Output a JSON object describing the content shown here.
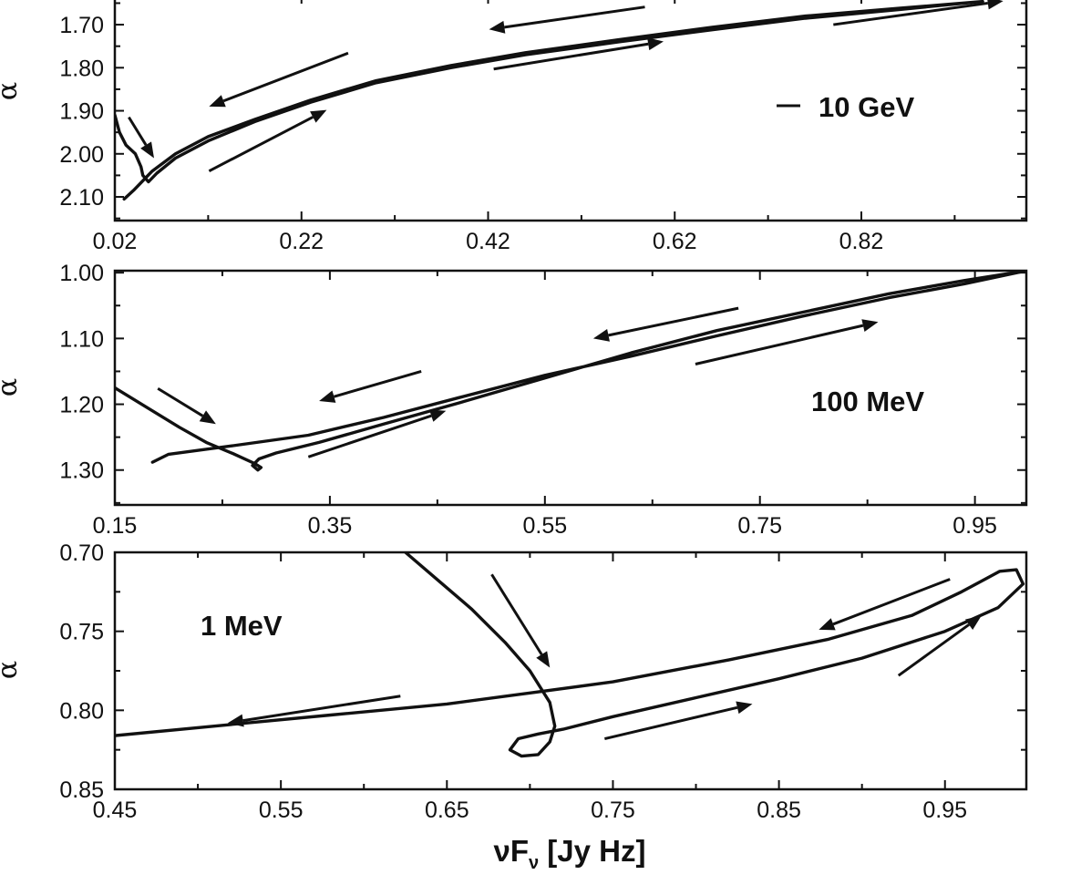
{
  "chart_data": [
    {
      "type": "line",
      "id": "panel-10gev",
      "label": "10 GeV",
      "ylabel": "α",
      "xlabel": "",
      "xlim": [
        0.02,
        0.9968
      ],
      "ylim": [
        1.63,
        2.155
      ],
      "y_inverted": true,
      "x_ticks": [
        0.02,
        0.22,
        0.42,
        0.62,
        0.82
      ],
      "x_tick_labels": [
        "0.02",
        "0.22",
        "0.42",
        "0.62",
        "0.82"
      ],
      "y_ticks": [
        1.7,
        1.8,
        1.9,
        2.0,
        2.1
      ],
      "y_tick_labels": [
        "1.70",
        "1.80",
        "1.90",
        "2.00",
        "2.10"
      ],
      "series": [
        {
          "points": [
            [
              0.02,
              1.91
            ],
            [
              0.025,
              1.95
            ],
            [
              0.032,
              1.98
            ],
            [
              0.042,
              2.0
            ],
            [
              0.048,
              2.03
            ],
            [
              0.05,
              2.05
            ],
            [
              0.056,
              2.065
            ],
            [
              0.065,
              2.045
            ],
            [
              0.085,
              2.01
            ],
            [
              0.12,
              1.97
            ],
            [
              0.17,
              1.925
            ],
            [
              0.23,
              1.88
            ],
            [
              0.3,
              1.835
            ],
            [
              0.38,
              1.8
            ],
            [
              0.46,
              1.77
            ],
            [
              0.56,
              1.74
            ],
            [
              0.66,
              1.712
            ],
            [
              0.76,
              1.685
            ],
            [
              0.86,
              1.665
            ],
            [
              0.95,
              1.646
            ],
            [
              0.86,
              1.662
            ],
            [
              0.76,
              1.68
            ],
            [
              0.66,
              1.706
            ],
            [
              0.56,
              1.735
            ],
            [
              0.46,
              1.765
            ],
            [
              0.38,
              1.795
            ],
            [
              0.3,
              1.83
            ],
            [
              0.23,
              1.875
            ],
            [
              0.17,
              1.92
            ],
            [
              0.12,
              1.96
            ],
            [
              0.085,
              2.0
            ],
            [
              0.06,
              2.04
            ],
            [
              0.04,
              2.085
            ],
            [
              0.03,
              2.105
            ]
          ]
        }
      ],
      "arrows": [
        [
          [
            0.588,
            1.659
          ],
          [
            0.421,
            1.711
          ]
        ],
        [
          [
            0.426,
            1.803
          ],
          [
            0.608,
            1.739
          ]
        ],
        [
          [
            0.27,
            1.766
          ],
          [
            0.121,
            1.89
          ]
        ],
        [
          [
            0.121,
            2.04
          ],
          [
            0.247,
            1.898
          ]
        ],
        [
          [
            0.035,
            1.915
          ],
          [
            0.062,
            2.01
          ]
        ],
        [
          [
            0.79,
            1.7
          ],
          [
            0.972,
            1.645
          ]
        ]
      ]
    },
    {
      "type": "line",
      "id": "panel-100mev",
      "label": "100 MeV",
      "ylabel": "α",
      "xlabel": "",
      "xlim": [
        0.15,
        0.9978
      ],
      "ylim": [
        0.997,
        1.353
      ],
      "y_inverted": true,
      "x_ticks": [
        0.15,
        0.35,
        0.55,
        0.75,
        0.95
      ],
      "x_tick_labels": [
        "0.15",
        "0.35",
        "0.55",
        "0.75",
        "0.95"
      ],
      "y_ticks": [
        1.0,
        1.1,
        1.2,
        1.3
      ],
      "y_tick_labels": [
        "1.00",
        "1.10",
        "1.20",
        "1.30"
      ],
      "series": [
        {
          "points": [
            [
              0.15,
              1.175
            ],
            [
              0.18,
              1.205
            ],
            [
              0.21,
              1.235
            ],
            [
              0.235,
              1.258
            ],
            [
              0.26,
              1.275
            ],
            [
              0.28,
              1.29
            ],
            [
              0.286,
              1.296
            ],
            [
              0.283,
              1.3
            ],
            [
              0.278,
              1.293
            ],
            [
              0.284,
              1.283
            ],
            [
              0.3,
              1.274
            ],
            [
              0.34,
              1.258
            ],
            [
              0.4,
              1.23
            ],
            [
              0.47,
              1.198
            ],
            [
              0.55,
              1.16
            ],
            [
              0.63,
              1.122
            ],
            [
              0.71,
              1.088
            ],
            [
              0.79,
              1.06
            ],
            [
              0.87,
              1.032
            ],
            [
              0.94,
              1.012
            ],
            [
              0.9978,
              0.997
            ],
            [
              0.94,
              1.017
            ],
            [
              0.87,
              1.038
            ],
            [
              0.79,
              1.066
            ],
            [
              0.71,
              1.096
            ],
            [
              0.63,
              1.127
            ],
            [
              0.55,
              1.156
            ],
            [
              0.47,
              1.19
            ],
            [
              0.4,
              1.22
            ],
            [
              0.33,
              1.247
            ],
            [
              0.26,
              1.263
            ],
            [
              0.2,
              1.276
            ],
            [
              0.185,
              1.288
            ]
          ]
        }
      ],
      "arrows": [
        [
          [
            0.73,
            1.054
          ],
          [
            0.595,
            1.1
          ]
        ],
        [
          [
            0.435,
            1.15
          ],
          [
            0.34,
            1.195
          ]
        ],
        [
          [
            0.19,
            1.176
          ],
          [
            0.244,
            1.23
          ]
        ],
        [
          [
            0.33,
            1.28
          ],
          [
            0.458,
            1.21
          ]
        ],
        [
          [
            0.69,
            1.139
          ],
          [
            0.86,
            1.075
          ]
        ]
      ]
    },
    {
      "type": "line",
      "id": "panel-1mev",
      "label": "1 MeV",
      "ylabel": "α",
      "xlabel": "νFν [Jy Hz]",
      "xlim": [
        0.45,
        0.999
      ],
      "ylim": [
        0.7,
        0.85
      ],
      "y_inverted": true,
      "x_ticks": [
        0.45,
        0.55,
        0.65,
        0.75,
        0.85,
        0.95
      ],
      "x_tick_labels": [
        "0.45",
        "0.55",
        "0.65",
        "0.75",
        "0.85",
        "0.95"
      ],
      "y_ticks": [
        0.7,
        0.75,
        0.8,
        0.85
      ],
      "y_tick_labels": [
        "0.70",
        "0.75",
        "0.80",
        "0.85"
      ],
      "series": [
        {
          "points": [
            [
              0.625,
              0.7
            ],
            [
              0.645,
              0.718
            ],
            [
              0.665,
              0.736
            ],
            [
              0.685,
              0.757
            ],
            [
              0.7,
              0.775
            ],
            [
              0.712,
              0.795
            ],
            [
              0.715,
              0.81
            ],
            [
              0.712,
              0.82
            ],
            [
              0.705,
              0.828
            ],
            [
              0.695,
              0.829
            ],
            [
              0.688,
              0.825
            ],
            [
              0.693,
              0.818
            ],
            [
              0.705,
              0.815
            ],
            [
              0.72,
              0.812
            ],
            [
              0.75,
              0.804
            ],
            [
              0.8,
              0.792
            ],
            [
              0.85,
              0.78
            ],
            [
              0.9,
              0.767
            ],
            [
              0.95,
              0.75
            ],
            [
              0.982,
              0.735
            ],
            [
              0.997,
              0.72
            ],
            [
              0.993,
              0.711
            ],
            [
              0.983,
              0.712
            ],
            [
              0.96,
              0.725
            ],
            [
              0.93,
              0.74
            ],
            [
              0.88,
              0.755
            ],
            [
              0.82,
              0.768
            ],
            [
              0.75,
              0.782
            ],
            [
              0.7,
              0.789
            ],
            [
              0.65,
              0.796
            ],
            [
              0.58,
              0.803
            ],
            [
              0.52,
              0.809
            ],
            [
              0.45,
              0.816
            ]
          ]
        }
      ],
      "arrows": [
        [
          [
            0.677,
            0.714
          ],
          [
            0.712,
            0.773
          ]
        ],
        [
          [
            0.622,
            0.791
          ],
          [
            0.518,
            0.808
          ]
        ],
        [
          [
            0.953,
            0.717
          ],
          [
            0.874,
            0.749
          ]
        ],
        [
          [
            0.745,
            0.818
          ],
          [
            0.834,
            0.796
          ]
        ],
        [
          [
            0.922,
            0.778
          ],
          [
            0.972,
            0.74
          ]
        ]
      ]
    }
  ]
}
